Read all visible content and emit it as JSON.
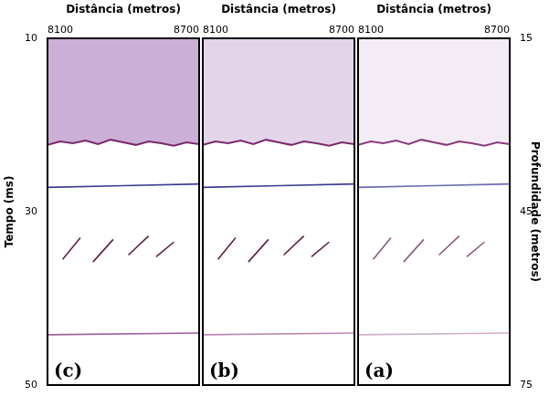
{
  "chart_data": [
    {
      "type": "line",
      "panel": "(c)",
      "x_label": "Distância (metros)",
      "y_label": "Tempo (ms)",
      "xlim": [
        8100,
        8700
      ],
      "xticks": [
        8100,
        8700
      ],
      "ylim": [
        10,
        50
      ],
      "yticks": [
        10,
        30,
        50
      ],
      "grid": false,
      "series": [
        {
          "color": "#7a2a6a",
          "x": [
            8100,
            8150,
            8200,
            8250,
            8300,
            8350,
            8400,
            8450,
            8500,
            8550,
            8600,
            8650,
            8700
          ],
          "values": [
            22.3,
            21.9,
            22.1,
            21.8,
            22.2,
            21.7,
            22.0,
            22.3,
            21.9,
            22.1,
            22.4,
            22.0,
            22.2
          ]
        },
        {
          "color": "#3b3b8f",
          "x": [
            8100,
            8400,
            8700
          ],
          "values": [
            27.2,
            27.0,
            26.8
          ]
        },
        {
          "color": "#5a2048",
          "x": [
            8160,
            8230,
            8250,
            8280,
            8360,
            8390,
            8420,
            8500,
            8515,
            8530,
            8600
          ],
          "values": [
            35.5,
            33.0,
            null,
            35.8,
            33.2,
            null,
            35.0,
            32.8,
            null,
            35.2,
            33.5
          ]
        },
        {
          "color": "#a0609a",
          "x": [
            8100,
            8700
          ],
          "values": [
            44.2,
            44.0
          ]
        }
      ]
    },
    {
      "type": "line",
      "panel": "(b)",
      "x_label": "Distância (metros)",
      "xlim": [
        8100,
        8700
      ],
      "xticks": [
        8100,
        8700
      ],
      "ylim": [
        10,
        50
      ],
      "grid": false,
      "series": [
        {
          "color": "#7a2a6a",
          "x": [
            8100,
            8150,
            8200,
            8250,
            8300,
            8350,
            8400,
            8450,
            8500,
            8550,
            8600,
            8650,
            8700
          ],
          "values": [
            22.3,
            21.9,
            22.1,
            21.8,
            22.2,
            21.7,
            22.0,
            22.3,
            21.9,
            22.1,
            22.4,
            22.0,
            22.2
          ]
        },
        {
          "color": "#3b3b8f",
          "x": [
            8100,
            8400,
            8700
          ],
          "values": [
            27.2,
            27.0,
            26.8
          ]
        },
        {
          "color": "#5a2048",
          "x": [
            8160,
            8230,
            8250,
            8280,
            8360,
            8390,
            8420,
            8500,
            8515,
            8530,
            8600
          ],
          "values": [
            35.5,
            33.0,
            null,
            35.8,
            33.2,
            null,
            35.0,
            32.8,
            null,
            35.2,
            33.5
          ]
        },
        {
          "color": "#b88ab2",
          "x": [
            8100,
            8700
          ],
          "values": [
            44.2,
            44.0
          ]
        }
      ]
    },
    {
      "type": "line",
      "panel": "(a)",
      "x_label": "Distância (metros)",
      "y2_label": "Profundidade (metros)",
      "xlim": [
        8100,
        8700
      ],
      "xticks": [
        8100,
        8700
      ],
      "ylim": [
        10,
        50
      ],
      "y2lim": [
        15,
        75
      ],
      "y2ticks": [
        15,
        45,
        75
      ],
      "grid": false,
      "series": [
        {
          "color": "#8a3a7a",
          "x": [
            8100,
            8150,
            8200,
            8250,
            8300,
            8350,
            8400,
            8450,
            8500,
            8550,
            8600,
            8650,
            8700
          ],
          "values": [
            22.3,
            21.9,
            22.1,
            21.8,
            22.2,
            21.7,
            22.0,
            22.3,
            21.9,
            22.1,
            22.4,
            22.0,
            22.2
          ]
        },
        {
          "color": "#6a6ab0",
          "x": [
            8100,
            8400,
            8700
          ],
          "values": [
            27.2,
            27.0,
            26.8
          ]
        },
        {
          "color": "#8a5a80",
          "x": [
            8160,
            8230,
            8250,
            8280,
            8360,
            8390,
            8420,
            8500,
            8515,
            8530,
            8600
          ],
          "values": [
            35.5,
            33.0,
            null,
            35.8,
            33.2,
            null,
            35.0,
            32.8,
            null,
            35.2,
            33.5
          ]
        },
        {
          "color": "#d0b0cc",
          "x": [
            8100,
            8700
          ],
          "values": [
            44.2,
            44.0
          ]
        }
      ]
    }
  ]
}
